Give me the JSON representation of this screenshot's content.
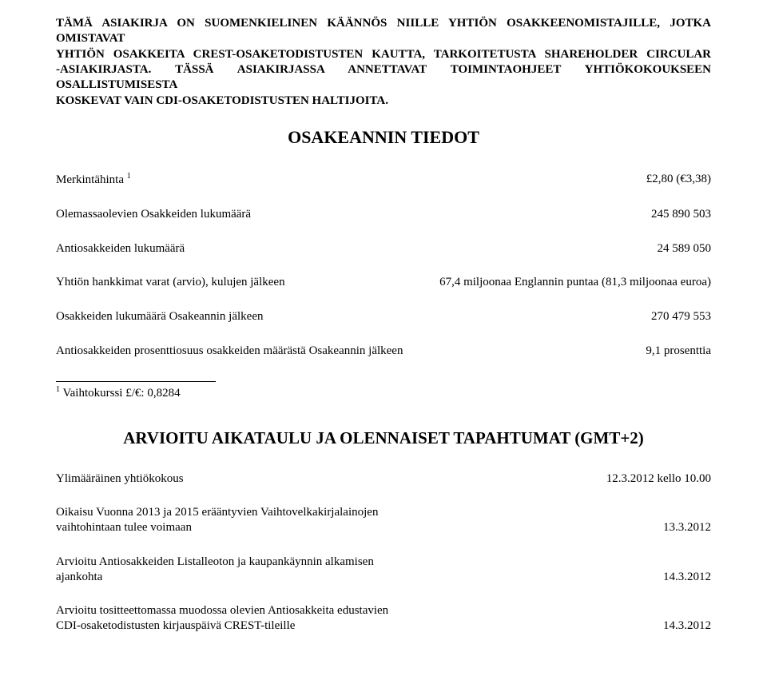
{
  "header": {
    "l1": "TÄMÄ ASIAKIRJA ON SUOMENKIELINEN KÄÄNNÖS NIILLE YHTIÖN OSAKKEENOMISTAJILLE, JOTKA OMISTAVAT",
    "l2": "YHTIÖN OSAKKEITA CREST-OSAKETODISTUSTEN KAUTTA, TARKOITETUSTA SHAREHOLDER CIRCULAR",
    "l3": "-ASIAKIRJASTA. TÄSSÄ ASIAKIRJASSA ANNETTAVAT TOIMINTAOHJEET YHTIÖKOKOUKSEEN OSALLISTUMISESTA",
    "l4": "KOSKEVAT VAIN CDI-OSAKETODISTUSTEN HALTIJOITA."
  },
  "section1": {
    "title": "OSAKEANNIN TIEDOT",
    "rows": {
      "r1": {
        "left_prefix": "Merkintähinta ",
        "sup": "1",
        "right": "£2,80 (€3,38)"
      },
      "r2": {
        "left": "Olemassaolevien Osakkeiden lukumäärä",
        "right": "245 890 503"
      },
      "r3": {
        "left": "Antiosakkeiden lukumäärä",
        "right": "24 589 050"
      },
      "r4": {
        "left": "Yhtiön hankkimat varat (arvio), kulujen jälkeen",
        "right": "67,4 miljoonaa Englannin puntaa (81,3 miljoonaa euroa)"
      },
      "r5": {
        "left": "Osakkeiden lukumäärä Osakeannin jälkeen",
        "right": "270 479 553"
      },
      "r6": {
        "left": "Antiosakkeiden prosenttiosuus osakkeiden määrästä Osakeannin jälkeen",
        "right": "9,1 prosenttia"
      }
    },
    "footnote": {
      "sup": "1",
      "text": " Vaihtokurssi £/€: 0,8284"
    }
  },
  "section2": {
    "title": "ARVIOITU AIKATAULU JA OLENNAISET TAPAHTUMAT (GMT+2)",
    "rows": {
      "r1": {
        "left": "Ylimääräinen yhtiökokous",
        "right": "12.3.2012 kello 10.00"
      },
      "r2": {
        "left_l1": "Oikaisu Vuonna 2013 ja 2015 erääntyvien Vaihtovelkakirjalainojen",
        "left_l2": "vaihtohintaan tulee voimaan",
        "right": "13.3.2012"
      },
      "r3": {
        "left_l1": "Arvioitu Antiosakkeiden Listalleoton ja kaupankäynnin alkamisen",
        "left_l2": "ajankohta",
        "right": "14.3.2012"
      },
      "r4": {
        "left_l1": "Arvioitu tositteettomassa muodossa olevien Antiosakkeita edustavien",
        "left_l2": "CDI-osaketodistusten kirjauspäivä CREST-tileille",
        "right": "14.3.2012"
      }
    }
  }
}
